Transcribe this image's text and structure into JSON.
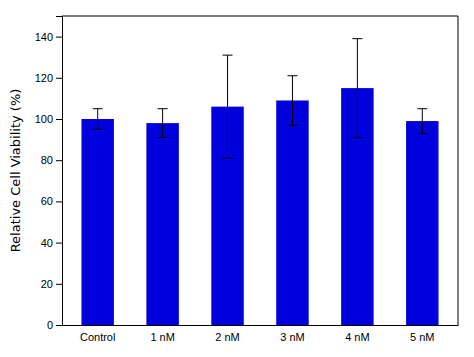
{
  "chart_data": {
    "type": "bar",
    "categories": [
      "Control",
      "1 nM",
      "2 nM",
      "3 nM",
      "4 nM",
      "5 nM"
    ],
    "values": [
      100.0,
      98.0,
      106.0,
      109.0,
      115.0,
      99.0
    ],
    "errors_upper": [
      5.0,
      7.0,
      25.0,
      12.0,
      24.0,
      6.0
    ],
    "errors_lower": [
      5.0,
      7.0,
      25.0,
      12.0,
      24.0,
      6.0
    ],
    "color": "#0000DD",
    "ylabel": "Relative Cell Viability (%)",
    "ylim": [
      0,
      150
    ],
    "yticks": [
      0,
      20,
      40,
      60,
      80,
      100,
      120,
      140
    ],
    "grid": false
  }
}
